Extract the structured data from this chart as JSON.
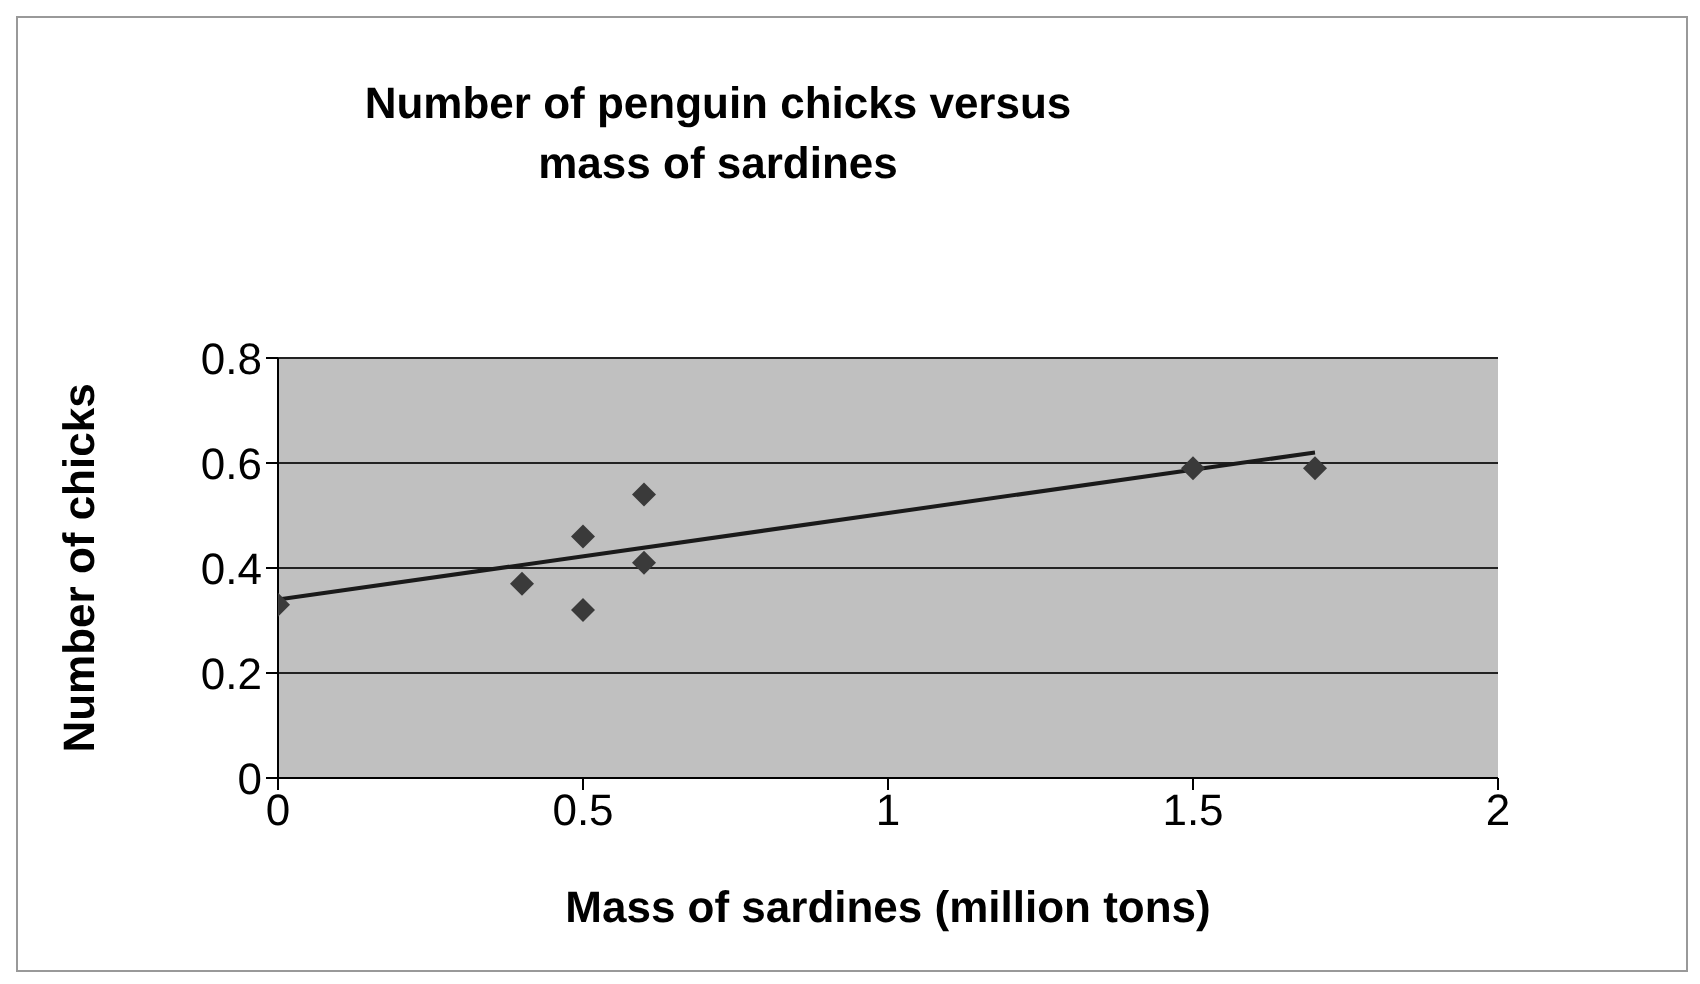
{
  "chart_data": {
    "type": "scatter",
    "title": "Number of penguin chicks versus mass of sardines",
    "xlabel": "Mass of sardines (million tons)",
    "ylabel": "Number of chicks",
    "series": [
      {
        "type": "scatter",
        "color": "#3a3a3a",
        "x": [
          0,
          0.4,
          0.5,
          0.5,
          0.6,
          0.6,
          1.5,
          1.7
        ],
        "values": [
          0.33,
          0.37,
          0.46,
          0.32,
          0.54,
          0.41,
          0.59,
          0.59
        ],
        "marker": "diamond"
      },
      {
        "type": "line",
        "color": "#1a1a1a",
        "x": [
          0,
          1.7
        ],
        "values": [
          0.34,
          0.62
        ],
        "marker": "none"
      }
    ],
    "xlim": [
      0,
      2
    ],
    "xticks": [
      0,
      0.5,
      1,
      1.5,
      2
    ],
    "ylim": [
      0,
      0.8
    ],
    "yticks": [
      0,
      0.2,
      0.4,
      0.6,
      0.8
    ],
    "grid": "y",
    "legend": false
  }
}
